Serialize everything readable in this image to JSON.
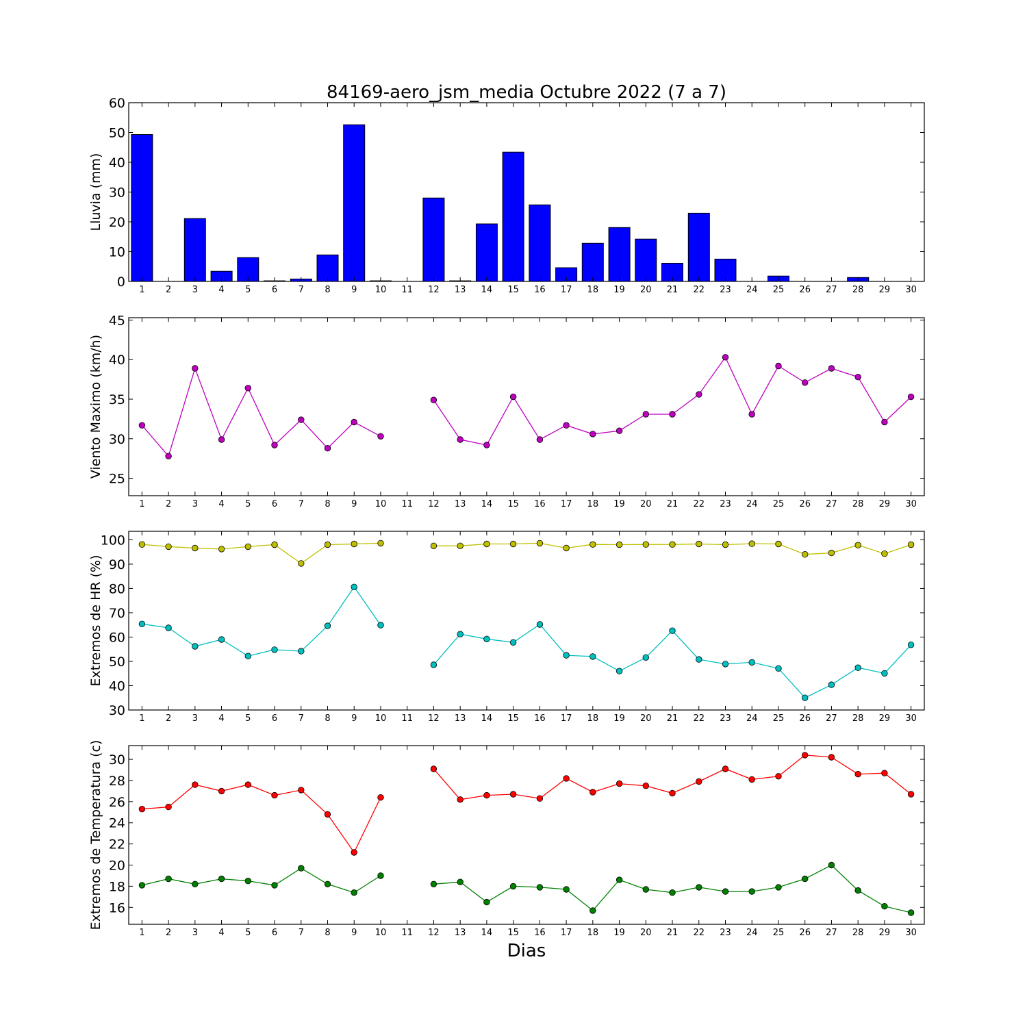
{
  "figure": {
    "title": "84169-aero_jsm_media Octubre 2022  (7 a 7)",
    "xlabel": "Dias"
  },
  "chart_data": [
    {
      "type": "bar",
      "ylabel": "Lluvia (mm)",
      "ylim": [
        0,
        60
      ],
      "yticks": [
        0,
        10,
        20,
        30,
        40,
        50,
        60
      ],
      "categories": [
        1,
        2,
        3,
        4,
        5,
        6,
        7,
        8,
        9,
        10,
        11,
        12,
        13,
        14,
        15,
        16,
        17,
        18,
        19,
        20,
        21,
        22,
        23,
        24,
        25,
        26,
        27,
        28,
        29,
        30
      ],
      "x": [
        1,
        2,
        3,
        4,
        5,
        6,
        7,
        8,
        9,
        10,
        11,
        12,
        13,
        14,
        15,
        16,
        17,
        18,
        19,
        20,
        21,
        22,
        23,
        24,
        25,
        26,
        27,
        28,
        29,
        30
      ],
      "values": [
        49.3,
        0,
        21.1,
        3.4,
        8.0,
        0.2,
        0.8,
        8.9,
        52.6,
        0.2,
        0,
        28.0,
        0.2,
        19.3,
        43.4,
        25.7,
        4.6,
        12.8,
        18.1,
        14.2,
        6.1,
        22.9,
        7.5,
        0,
        1.8,
        0,
        0,
        1.3,
        0,
        0
      ],
      "series": [
        {
          "color": "#0000ff"
        }
      ]
    },
    {
      "type": "line",
      "ylabel": "Viento Maximo (km/h)",
      "ylim": [
        22.8,
        45.3
      ],
      "yticks": [
        25,
        30,
        35,
        40,
        45
      ],
      "x": [
        1,
        2,
        3,
        4,
        5,
        6,
        7,
        8,
        9,
        10,
        11,
        12,
        13,
        14,
        15,
        16,
        17,
        18,
        19,
        20,
        21,
        22,
        23,
        24,
        25,
        26,
        27,
        28,
        29,
        30
      ],
      "series": [
        {
          "color": "#bf00bf",
          "values": [
            31.7,
            27.8,
            38.9,
            29.9,
            36.4,
            29.2,
            32.4,
            28.8,
            32.1,
            30.3,
            null,
            34.9,
            29.9,
            29.2,
            35.3,
            29.9,
            31.7,
            30.6,
            31.0,
            33.1,
            33.1,
            35.6,
            40.3,
            33.1,
            39.2,
            37.1,
            38.9,
            37.8,
            32.1,
            35.3
          ]
        }
      ]
    },
    {
      "type": "line",
      "ylabel": "Extremos de HR (%)",
      "ylim": [
        30,
        103.5
      ],
      "yticks": [
        30,
        40,
        50,
        60,
        70,
        80,
        90,
        100
      ],
      "x": [
        1,
        2,
        3,
        4,
        5,
        6,
        7,
        8,
        9,
        10,
        11,
        12,
        13,
        14,
        15,
        16,
        17,
        18,
        19,
        20,
        21,
        22,
        23,
        24,
        25,
        26,
        27,
        28,
        29,
        30
      ],
      "series": [
        {
          "color": "#bfbf00",
          "values": [
            98.1,
            97.2,
            96.6,
            96.2,
            97.2,
            98.0,
            90.3,
            98.0,
            98.3,
            98.6,
            null,
            97.5,
            97.5,
            98.3,
            98.3,
            98.6,
            96.6,
            98.1,
            98.0,
            98.1,
            98.1,
            98.3,
            98.0,
            98.4,
            98.3,
            94.0,
            94.6,
            97.8,
            94.3,
            98.0
          ]
        },
        {
          "color": "#00bfbf",
          "values": [
            65.4,
            63.8,
            56.2,
            59.0,
            52.2,
            54.8,
            54.2,
            64.6,
            80.6,
            64.9,
            null,
            48.6,
            61.2,
            59.2,
            57.8,
            65.2,
            52.5,
            52.0,
            46.0,
            51.6,
            62.6,
            50.8,
            48.9,
            49.6,
            47.1,
            35.0,
            40.4,
            47.4,
            45.1,
            56.8
          ]
        }
      ]
    },
    {
      "type": "line",
      "ylabel": "Extremos de Temperatura (c)",
      "ylim": [
        14.4,
        31.3
      ],
      "yticks": [
        16,
        18,
        20,
        22,
        24,
        26,
        28,
        30
      ],
      "x": [
        1,
        2,
        3,
        4,
        5,
        6,
        7,
        8,
        9,
        10,
        11,
        12,
        13,
        14,
        15,
        16,
        17,
        18,
        19,
        20,
        21,
        22,
        23,
        24,
        25,
        26,
        27,
        28,
        29,
        30
      ],
      "series": [
        {
          "color": "#ff0000",
          "values": [
            25.3,
            25.5,
            27.6,
            27.0,
            27.6,
            26.6,
            27.1,
            24.8,
            21.2,
            26.4,
            null,
            29.1,
            26.2,
            26.6,
            26.7,
            26.3,
            28.2,
            26.9,
            27.7,
            27.5,
            26.8,
            27.9,
            29.1,
            28.1,
            28.4,
            30.4,
            30.2,
            28.6,
            28.7,
            26.7
          ]
        },
        {
          "color": "#008000",
          "values": [
            18.1,
            18.7,
            18.2,
            18.7,
            18.5,
            18.1,
            19.7,
            18.2,
            17.4,
            19.0,
            null,
            18.2,
            18.4,
            16.5,
            18.0,
            17.9,
            17.7,
            15.7,
            18.6,
            17.7,
            17.4,
            17.9,
            17.5,
            17.5,
            17.9,
            18.7,
            20.0,
            17.6,
            16.1,
            15.5
          ]
        }
      ]
    }
  ]
}
